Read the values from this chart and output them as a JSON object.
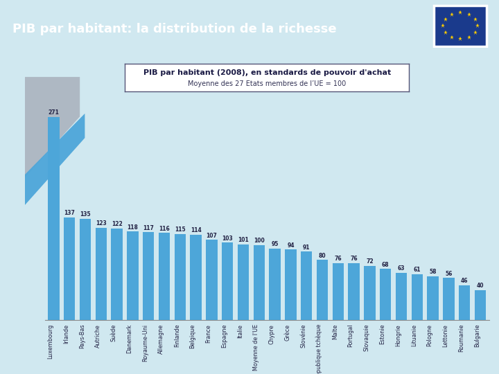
{
  "title": "PIB par habitant: la distribution de la richesse",
  "subtitle_line1": "PIB par habitant (2008), en standards de pouvoir d'achat",
  "subtitle_line2": "Moyenne des 27 Etats membres de l’UE = 100",
  "categories": [
    "Luxembourg",
    "Irlande",
    "Pays-Bas",
    "Autriche",
    "Suède",
    "Danemark",
    "Royaume-Uni",
    "Allemagne",
    "Finlande",
    "Belgique",
    "France",
    "Espagne",
    "Italie",
    "Moyenne de l'UE",
    "Chypre",
    "Grèce",
    "Slovénie",
    "République tchèque",
    "Malte",
    "Portugal",
    "Slovaquie",
    "Estonie",
    "Hongrie",
    "Lituanie",
    "Pologne",
    "Lettonie",
    "Roumanie",
    "Bulgarie"
  ],
  "values": [
    271,
    137,
    135,
    123,
    122,
    118,
    117,
    116,
    115,
    114,
    107,
    103,
    101,
    100,
    95,
    94,
    91,
    80,
    76,
    76,
    72,
    68,
    63,
    61,
    58,
    56,
    46,
    40
  ],
  "bar_color": "#4DA6D9",
  "bar_color_dark": "#2E86B5",
  "outer_bg": "#D0E8F0",
  "inner_bg": "#FFFFFF",
  "header_bg": "#1A3A8C",
  "header_text": "#FFFFFF",
  "logo_bg": "#1A3A8C",
  "logo_border": "#FFFFFF",
  "star_color": "#FFCC00",
  "label_color": "#222244",
  "value_label_color": "#222244",
  "subtitle_border": "#555577",
  "deco_gray": "#A8B0BC",
  "deco_blue": "#4DA6D9",
  "title_fontsize": 13,
  "subtitle_fontsize1": 8,
  "subtitle_fontsize2": 7,
  "bar_label_fontsize": 5.5,
  "tick_fontsize": 5.8
}
